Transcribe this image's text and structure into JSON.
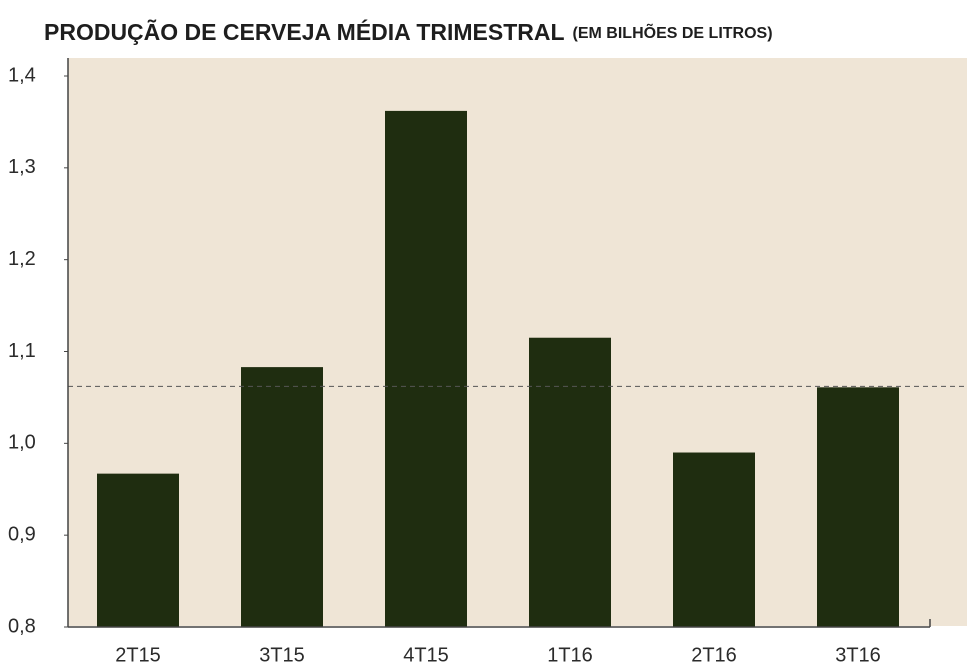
{
  "chart_data": {
    "type": "bar",
    "title": "PRODUÇÃO DE CERVEJA MÉDIA TRIMESTRAL",
    "subtitle": "(EM BILHÕES DE LITROS)",
    "categories": [
      "2T15",
      "3T15",
      "4T15",
      "1T16",
      "2T16",
      "3T16"
    ],
    "values": [
      0.967,
      1.083,
      1.362,
      1.115,
      0.99,
      1.061
    ],
    "color": "#1f2d10",
    "reference_line": 1.062,
    "ylim": [
      0.8,
      1.4
    ],
    "yticks": [
      {
        "value": 0.8,
        "label": "0,8"
      },
      {
        "value": 0.9,
        "label": "0,9"
      },
      {
        "value": 1.0,
        "label": "1,0"
      },
      {
        "value": 1.1,
        "label": "1,1"
      },
      {
        "value": 1.2,
        "label": "1,2"
      },
      {
        "value": 1.3,
        "label": "1,3"
      },
      {
        "value": 1.4,
        "label": "1,4"
      }
    ]
  }
}
